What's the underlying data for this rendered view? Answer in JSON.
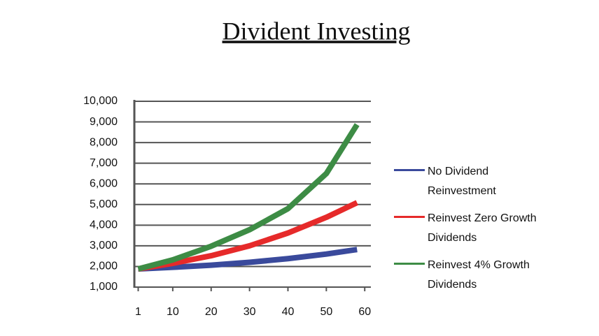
{
  "chart_data": {
    "type": "line",
    "title": "Divident Investing",
    "x": [
      1,
      10,
      20,
      30,
      40,
      50,
      58
    ],
    "series": [
      {
        "name": "No Dividend Reinvestment",
        "color": "#3a4a9c",
        "values": [
          1880,
          1960,
          2060,
          2200,
          2380,
          2600,
          2820
        ]
      },
      {
        "name": "Reinvest Zero Growth Dividends",
        "color": "#e62a2a",
        "values": [
          1880,
          2150,
          2520,
          3000,
          3620,
          4380,
          5090
        ]
      },
      {
        "name": "Reinvest 4% Growth Dividends",
        "color": "#3d8c45",
        "values": [
          1880,
          2320,
          2980,
          3780,
          4800,
          6500,
          8870
        ]
      }
    ],
    "xlim": [
      0,
      61.6
    ],
    "xticks": [
      1,
      10,
      20,
      30,
      40,
      50,
      60
    ],
    "ylim": [
      1000,
      10000
    ],
    "yticks": [
      {
        "value": 1000,
        "label": "1,000"
      },
      {
        "value": 2000,
        "label": "2,000"
      },
      {
        "value": 3000,
        "label": "3,000"
      },
      {
        "value": 4000,
        "label": "4,000"
      },
      {
        "value": 5000,
        "label": "5,000"
      },
      {
        "value": 6000,
        "label": "6,000"
      },
      {
        "value": 7000,
        "label": "7,000"
      },
      {
        "value": 8000,
        "label": "8,000"
      },
      {
        "value": 9000,
        "label": "9,000"
      },
      {
        "value": 10000,
        "label": "10,000"
      }
    ],
    "grid": true,
    "legend": "right"
  }
}
